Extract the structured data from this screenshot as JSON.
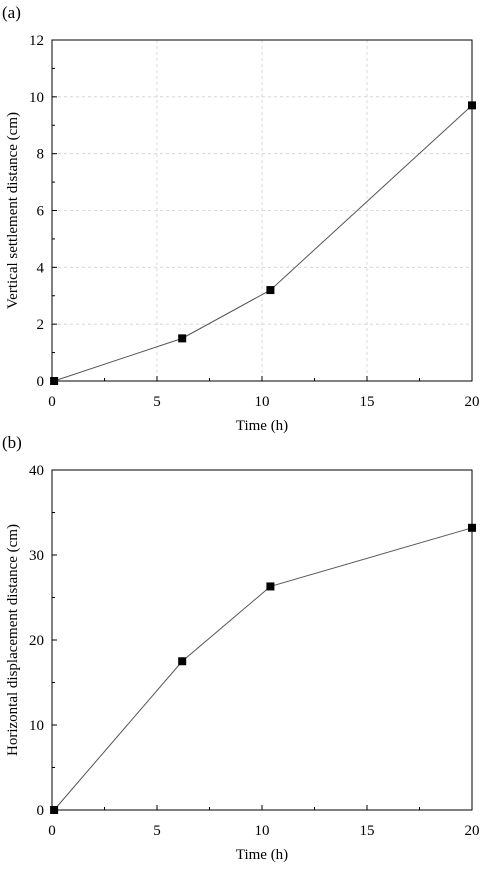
{
  "chart_data": [
    {
      "panel_label": "(a)",
      "type": "line",
      "xlabel": "Time (h)",
      "ylabel": "Vertical settlement distance (cm)",
      "xlim": [
        0,
        20
      ],
      "ylim": [
        0,
        12
      ],
      "xticks": [
        0,
        5,
        10,
        15,
        20
      ],
      "yticks": [
        0,
        2,
        4,
        6,
        8,
        10,
        12
      ],
      "grid": true,
      "marker": "square",
      "color": "#000000",
      "series": [
        {
          "x": [
            0.1,
            6.2,
            10.4,
            20
          ],
          "y": [
            0,
            1.5,
            3.2,
            9.7
          ]
        }
      ]
    },
    {
      "panel_label": "(b)",
      "type": "line",
      "xlabel": "Time (h)",
      "ylabel": "Horizontal displacement distance (cm)",
      "xlim": [
        0,
        20
      ],
      "ylim": [
        0,
        40
      ],
      "xticks": [
        0,
        5,
        10,
        15,
        20
      ],
      "yticks": [
        0,
        10,
        20,
        30,
        40
      ],
      "grid": false,
      "marker": "square",
      "color": "#000000",
      "series": [
        {
          "x": [
            0.1,
            6.2,
            10.4,
            20
          ],
          "y": [
            0,
            17.5,
            26.3,
            33.2
          ]
        }
      ]
    }
  ]
}
